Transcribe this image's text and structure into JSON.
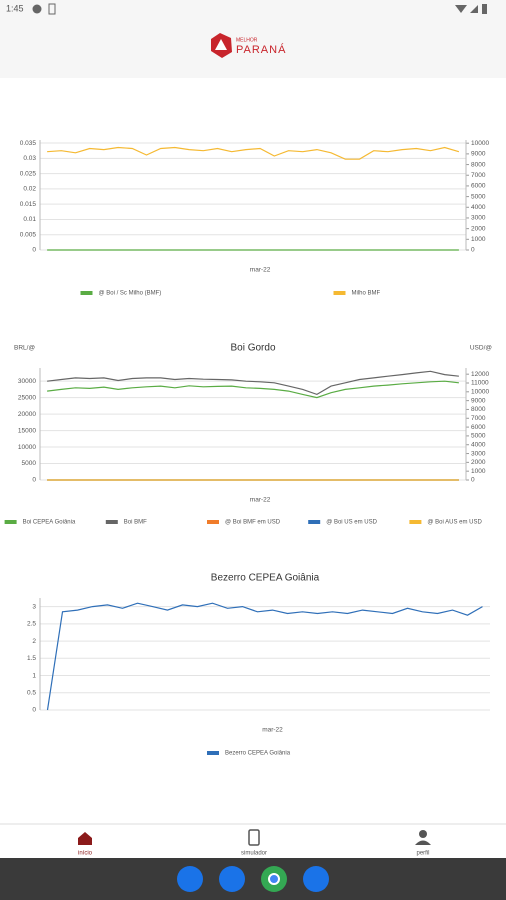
{
  "status_bar": {
    "time": "1:45"
  },
  "header": {
    "logo_top": "MELHOR",
    "logo_main": "PARANÁ"
  },
  "chart_data": [
    {
      "type": "line",
      "categories": [
        null,
        null,
        null,
        null,
        null,
        null,
        null,
        null,
        null,
        null,
        null,
        null,
        null,
        null,
        null,
        "mar-22",
        null,
        null,
        null,
        null,
        null,
        null,
        null,
        null,
        null,
        null,
        null,
        null,
        null,
        null
      ],
      "ylim": [
        0,
        0.036
      ],
      "yticks": [
        0,
        0.005,
        0.01,
        0.015,
        0.02,
        0.025,
        0.03,
        0.035
      ],
      "y2lim": [
        0,
        10300
      ],
      "y2ticks": [
        0,
        1000,
        2000,
        3000,
        4000,
        5000,
        6000,
        7000,
        8000,
        9000,
        10000
      ],
      "grid": true,
      "series": [
        {
          "name": "@ Boi / Sc Milho (BMF)",
          "color": "#5aac44",
          "values": [
            0,
            0,
            0,
            0,
            0,
            0,
            0,
            0,
            0,
            0,
            0,
            0,
            0,
            0,
            0,
            0,
            0,
            0,
            0,
            0,
            0,
            0,
            0,
            0,
            0,
            0,
            0,
            0,
            0,
            0
          ]
        },
        {
          "name": "Milho BMF",
          "color": "#f5b932",
          "axis": "y2",
          "values": [
            9200,
            9300,
            9100,
            9500,
            9400,
            9600,
            9500,
            8900,
            9500,
            9600,
            9400,
            9300,
            9500,
            9200,
            9400,
            9500,
            8800,
            9300,
            9200,
            9400,
            9100,
            8500,
            8500,
            9300,
            9200,
            9400,
            9500,
            9300,
            9600,
            9200
          ]
        }
      ]
    },
    {
      "type": "line",
      "title": "Boi Gordo",
      "y_label": "BRL/@",
      "y2_label": "USD/@",
      "categories": [
        null,
        null,
        null,
        null,
        null,
        null,
        null,
        null,
        null,
        null,
        null,
        null,
        null,
        null,
        null,
        "mar-22",
        null,
        null,
        null,
        null,
        null,
        null,
        null,
        null,
        null,
        null,
        null,
        null,
        null,
        null
      ],
      "ylim": [
        0,
        34000
      ],
      "yticks": [
        0,
        5000,
        10000,
        15000,
        20000,
        25000,
        30000
      ],
      "y2lim": [
        0,
        12700
      ],
      "y2ticks": [
        0,
        1000,
        2000,
        3000,
        4000,
        5000,
        6000,
        7000,
        8000,
        9000,
        10000,
        11000,
        12000
      ],
      "grid": true,
      "series": [
        {
          "name": "Boi CEPEA Goiânia",
          "color": "#5aac44",
          "values": [
            27000,
            27500,
            28000,
            27800,
            28200,
            27500,
            28000,
            28300,
            28500,
            28000,
            28600,
            28300,
            28400,
            28500,
            28000,
            27800,
            27500,
            27000,
            26000,
            25000,
            26500,
            27500,
            28000,
            28500,
            28800,
            29200,
            29500,
            29800,
            30000,
            29500
          ]
        },
        {
          "name": "Boi BMF",
          "color": "#666666",
          "values": [
            30000,
            30500,
            31000,
            30800,
            31000,
            30200,
            30800,
            31000,
            31000,
            30500,
            30800,
            30600,
            30500,
            30400,
            30000,
            29800,
            29500,
            28500,
            27500,
            26000,
            28500,
            29500,
            30500,
            31000,
            31500,
            32000,
            32500,
            33000,
            32000,
            31500
          ]
        },
        {
          "name": "@ Boi BMF em USD",
          "color": "#f07c2a",
          "axis": "y2",
          "values": [
            0,
            0,
            0,
            0,
            0,
            0,
            0,
            0,
            0,
            0,
            0,
            0,
            0,
            0,
            0,
            0,
            0,
            0,
            0,
            0,
            0,
            0,
            0,
            0,
            0,
            0,
            0,
            0,
            0,
            0
          ]
        },
        {
          "name": "@ Boi US em USD",
          "color": "#2f6fb8",
          "axis": "y2",
          "values": [
            0,
            0,
            0,
            0,
            0,
            0,
            0,
            0,
            0,
            0,
            0,
            0,
            0,
            0,
            0,
            0,
            0,
            0,
            0,
            0,
            0,
            0,
            0,
            0,
            0,
            0,
            0,
            0,
            0,
            0
          ]
        },
        {
          "name": "@ Boi AUS em USD",
          "color": "#f5b932",
          "axis": "y2",
          "values": [
            0,
            0,
            0,
            0,
            0,
            0,
            0,
            0,
            0,
            0,
            0,
            0,
            0,
            0,
            0,
            0,
            0,
            0,
            0,
            0,
            0,
            0,
            0,
            0,
            0,
            0,
            0,
            0,
            0,
            0
          ]
        }
      ]
    },
    {
      "type": "line",
      "title": "Bezerro CEPEA Goiânia",
      "categories": [
        null,
        null,
        null,
        null,
        null,
        null,
        null,
        null,
        null,
        null,
        null,
        null,
        null,
        null,
        null,
        "mar-22",
        null,
        null,
        null,
        null,
        null,
        null,
        null,
        null,
        null,
        null,
        null,
        null,
        null,
        null
      ],
      "ylim": [
        0,
        3.25
      ],
      "yticks": [
        0,
        0.5,
        1,
        1.5,
        2,
        2.5,
        3
      ],
      "grid": true,
      "series": [
        {
          "name": "Bezerro CEPEA Goiânia",
          "color": "#2f6fb8",
          "values": [
            0,
            2.85,
            2.9,
            3.0,
            3.05,
            2.95,
            3.1,
            3.0,
            2.9,
            3.05,
            3.0,
            3.1,
            2.95,
            3.0,
            2.85,
            2.9,
            2.8,
            2.85,
            2.8,
            2.85,
            2.8,
            2.9,
            2.85,
            2.8,
            2.95,
            2.85,
            2.8,
            2.9,
            2.75,
            3.0
          ]
        }
      ]
    }
  ],
  "nav": {
    "items": [
      "início",
      "simulador",
      "perfil"
    ]
  }
}
